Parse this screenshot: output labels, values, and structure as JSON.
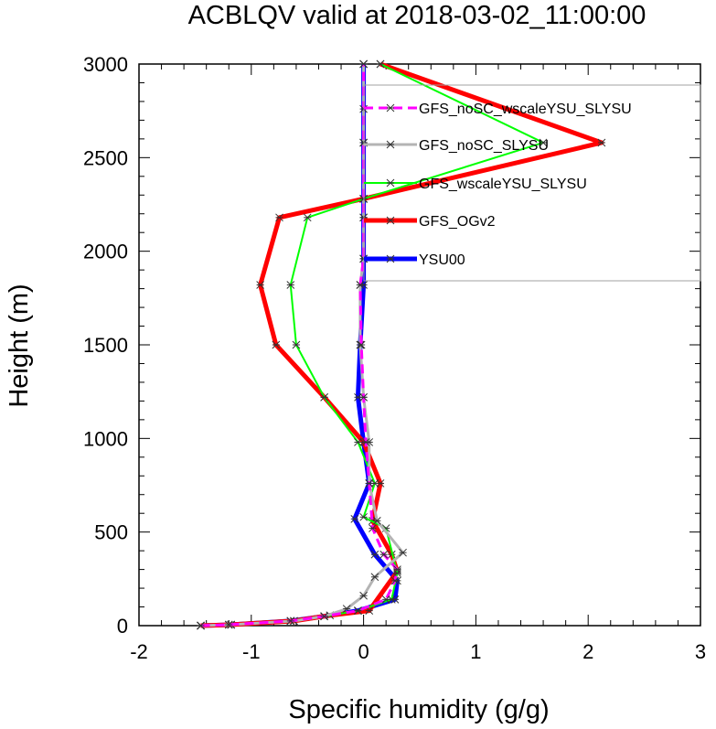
{
  "chart_data": {
    "type": "line",
    "title": "ACBLQV valid at 2018-03-02_11:00:00",
    "xlabel": "Specific humidity (g/g)",
    "ylabel": "Height (m)",
    "xlim": [
      -2,
      3
    ],
    "ylim": [
      0,
      3000
    ],
    "xticks": [
      -2,
      -1,
      0,
      1,
      2,
      3
    ],
    "yticks": [
      0,
      500,
      1000,
      1500,
      2000,
      2500,
      3000
    ],
    "grid": false,
    "legend_position": "top-right",
    "series": [
      {
        "name": "GFS_noSC_wscaleYSU_SLYSU",
        "color": "#ff00ff",
        "dash": true,
        "width": 3,
        "x": [
          -1.45,
          -1.2,
          -0.65,
          -0.35,
          -0.05,
          0.2,
          0.28,
          0.3,
          0.18,
          0.08,
          0.05,
          0.02,
          0.0,
          -0.02,
          -0.03,
          0.0,
          0.0,
          0.0,
          0.0,
          0.0,
          0.0
        ],
        "y": [
          0,
          5,
          25,
          50,
          80,
          140,
          240,
          300,
          380,
          520,
          760,
          980,
          1220,
          1500,
          1820,
          1960,
          2180,
          2280,
          2580,
          2760,
          3000
        ]
      },
      {
        "name": "GFS_noSC_SLYSU",
        "color": "#b4b4b4",
        "dash": false,
        "width": 3,
        "x": [
          -1.45,
          -1.18,
          -0.62,
          -0.35,
          -0.15,
          0.0,
          0.1,
          0.35,
          0.12,
          0.05,
          0.05,
          0.0,
          -0.03,
          -0.03,
          0.0,
          0.0,
          0.0,
          0.0,
          0.0
        ],
        "y": [
          0,
          5,
          25,
          50,
          90,
          160,
          260,
          390,
          560,
          760,
          980,
          1220,
          1500,
          1820,
          1960,
          2180,
          2280,
          2580,
          3000
        ]
      },
      {
        "name": "GFS_wscaleYSU_SLYSU",
        "color": "#00ff00",
        "dash": false,
        "width": 2,
        "x": [
          -1.45,
          -1.2,
          -0.65,
          -0.35,
          -0.05,
          0.25,
          0.3,
          0.2,
          0.0,
          0.1,
          -0.05,
          -0.35,
          -0.6,
          -0.65,
          -0.5,
          0.0,
          1.6,
          0.15
        ],
        "y": [
          0,
          5,
          25,
          50,
          80,
          140,
          280,
          520,
          580,
          760,
          980,
          1220,
          1500,
          1820,
          2180,
          2280,
          2580,
          3000
        ]
      },
      {
        "name": "GFS_OGv2",
        "color": "#ff0000",
        "dash": false,
        "width": 5,
        "x": [
          -1.45,
          -1.18,
          -0.62,
          -0.3,
          0.05,
          0.3,
          0.25,
          0.08,
          0.15,
          0.0,
          -0.35,
          -0.78,
          -0.92,
          -0.75,
          0.0,
          2.12,
          0.15
        ],
        "y": [
          0,
          5,
          25,
          55,
          80,
          290,
          380,
          560,
          760,
          980,
          1220,
          1500,
          1820,
          2180,
          2280,
          2580,
          3000
        ]
      },
      {
        "name": "YSU00",
        "color": "#0000ff",
        "dash": false,
        "width": 5,
        "x": [
          -1.45,
          -1.18,
          -0.65,
          -0.35,
          -0.05,
          0.28,
          0.3,
          0.1,
          -0.08,
          0.05,
          0.0,
          -0.05,
          -0.03,
          0.0,
          0.0,
          0.0,
          0.0,
          0.0
        ],
        "y": [
          0,
          5,
          25,
          50,
          80,
          140,
          240,
          380,
          570,
          760,
          980,
          1220,
          1500,
          1820,
          1960,
          2180,
          2580,
          3000
        ]
      }
    ]
  }
}
